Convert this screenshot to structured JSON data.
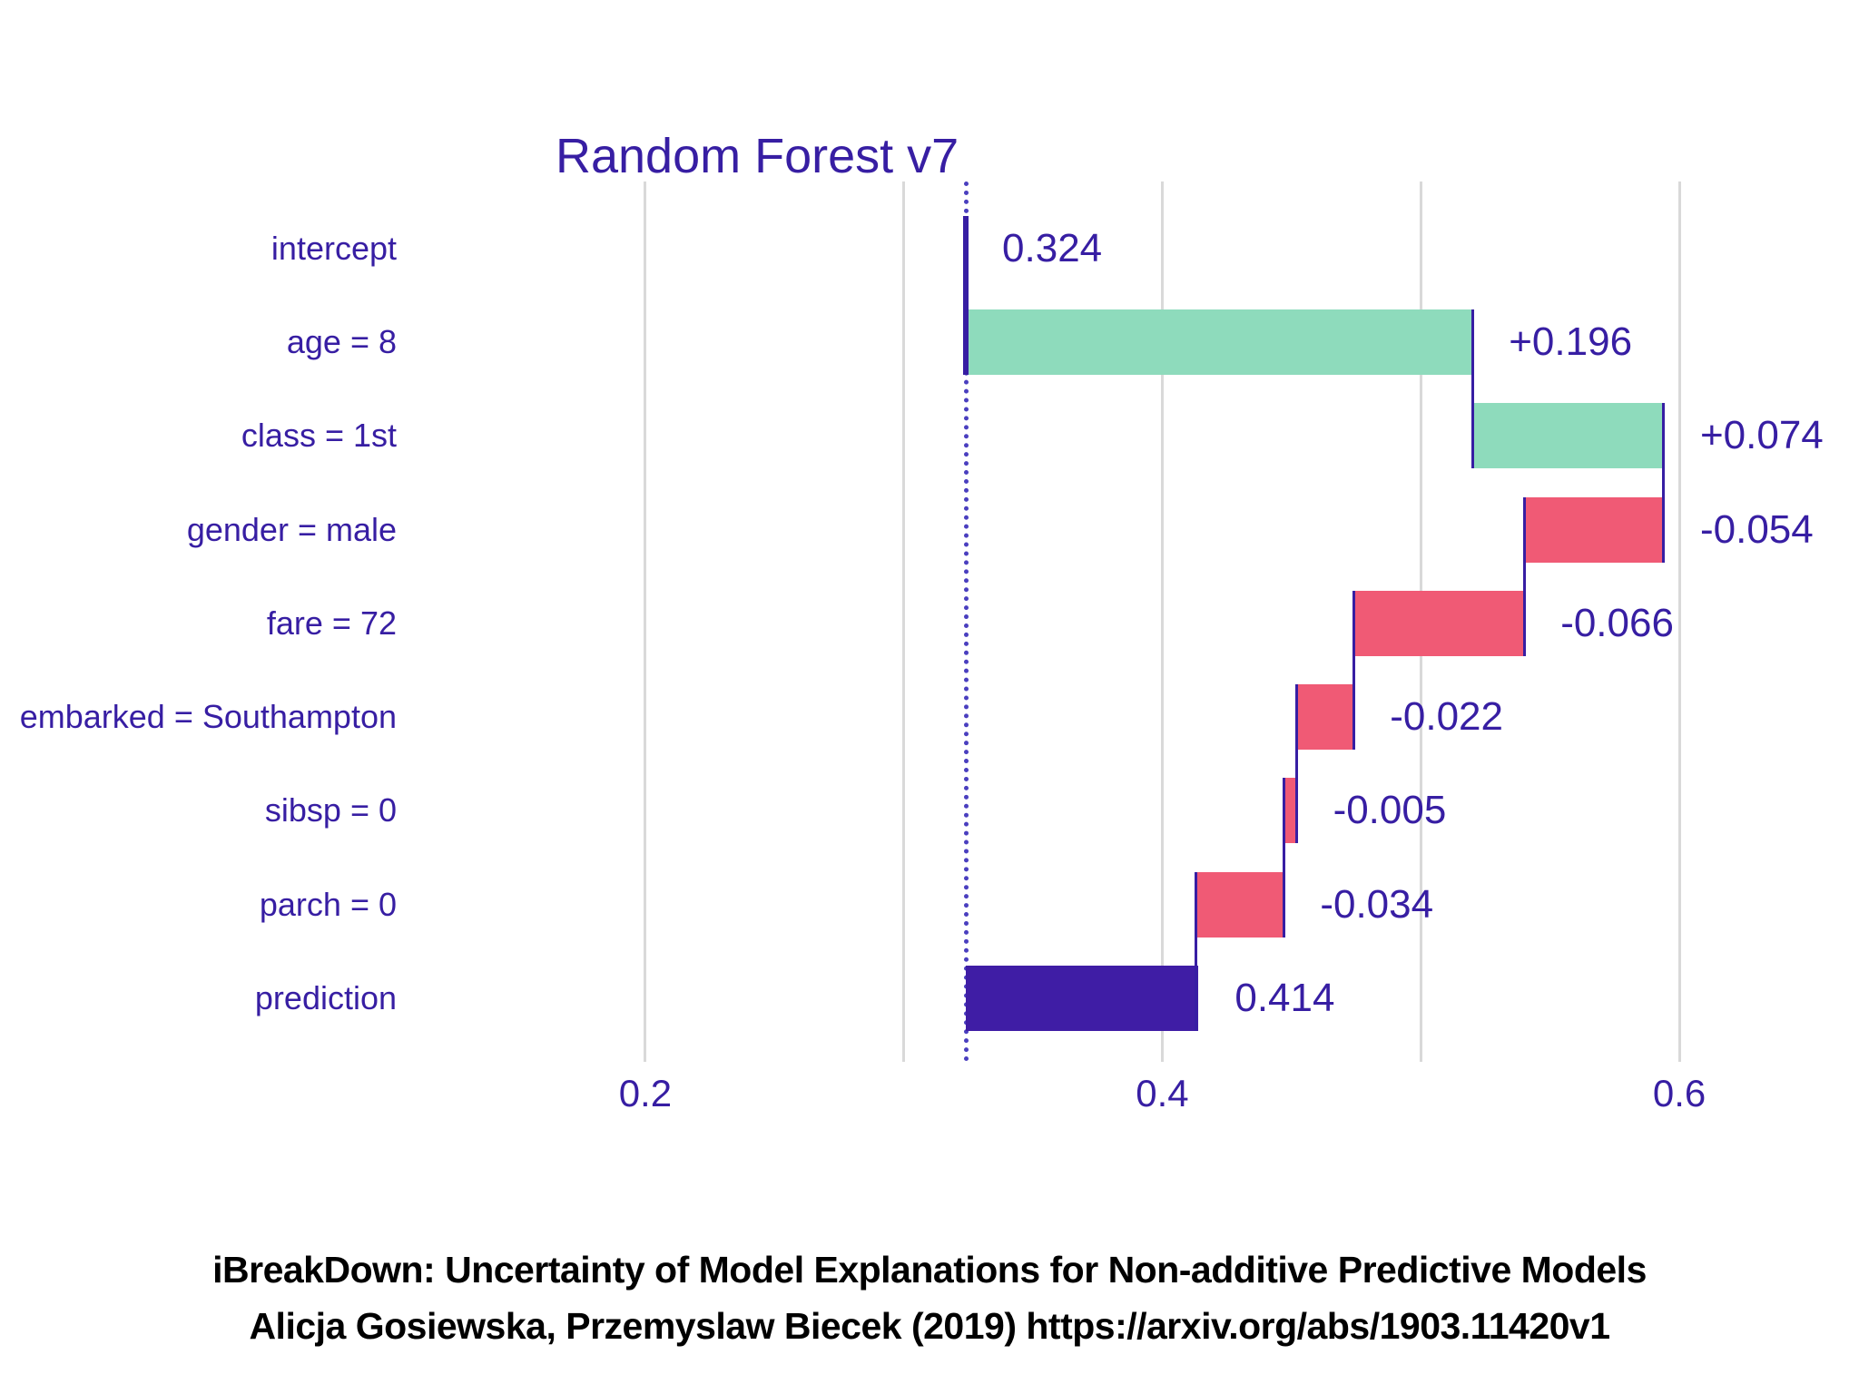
{
  "title": "Random Forest v7",
  "caption": {
    "line1": "iBreakDown: Uncertainty of Model Explanations for Non-additive Predictive Models",
    "line2": "Alicja Gosiewska, Przemyslaw Biecek (2019) https://arxiv.org/abs/1903.11420v1"
  },
  "colors": {
    "positive": "#8edbbc",
    "negative": "#f05a75",
    "total": "#3f1da5",
    "connector": "#371ea3",
    "text": "#371ea3",
    "grid": "#d9d9d9",
    "baseline_dotted": "#4a3fbf",
    "caption": "#000000",
    "background": "#ffffff"
  },
  "chart_data": {
    "type": "bar",
    "subtype": "breakdown-waterfall",
    "title": "Random Forest v7",
    "orientation": "horizontal",
    "xlabel": "",
    "ylabel": "",
    "axis": {
      "min": 0.1119,
      "max": 0.6695,
      "ticks": [
        {
          "value": 0.2,
          "label": "0.2"
        },
        {
          "value": 0.4,
          "label": "0.4"
        },
        {
          "value": 0.6,
          "label": "0.6"
        }
      ],
      "minor_gridlines": [
        0.3,
        0.5
      ],
      "baseline": 0.324,
      "grid": "on",
      "legend": "none"
    },
    "rows": [
      {
        "label": "intercept",
        "contribution": 0.324,
        "cumulative_start": 0.324,
        "cumulative_end": 0.324,
        "display": "0.324",
        "kind": "intercept"
      },
      {
        "label": "age = 8",
        "contribution": 0.196,
        "cumulative_start": 0.324,
        "cumulative_end": 0.52,
        "display": "+0.196",
        "kind": "positive"
      },
      {
        "label": "class = 1st",
        "contribution": 0.074,
        "cumulative_start": 0.52,
        "cumulative_end": 0.594,
        "display": "+0.074",
        "kind": "positive"
      },
      {
        "label": "gender = male",
        "contribution": -0.054,
        "cumulative_start": 0.594,
        "cumulative_end": 0.54,
        "display": "-0.054",
        "kind": "negative"
      },
      {
        "label": "fare = 72",
        "contribution": -0.066,
        "cumulative_start": 0.54,
        "cumulative_end": 0.474,
        "display": "-0.066",
        "kind": "negative"
      },
      {
        "label": "embarked = Southampton",
        "contribution": -0.022,
        "cumulative_start": 0.474,
        "cumulative_end": 0.452,
        "display": "-0.022",
        "kind": "negative"
      },
      {
        "label": "sibsp = 0",
        "contribution": -0.005,
        "cumulative_start": 0.452,
        "cumulative_end": 0.447,
        "display": "-0.005",
        "kind": "negative"
      },
      {
        "label": "parch = 0",
        "contribution": -0.034,
        "cumulative_start": 0.447,
        "cumulative_end": 0.413,
        "display": "-0.034",
        "kind": "negative"
      },
      {
        "label": "prediction",
        "contribution": 0.414,
        "cumulative_start": 0.324,
        "cumulative_end": 0.414,
        "display": "0.414",
        "kind": "total"
      }
    ]
  }
}
